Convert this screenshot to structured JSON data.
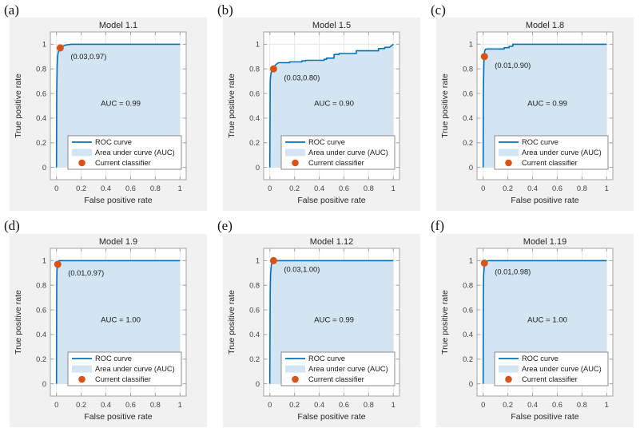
{
  "figure": {
    "background": "#ffffff",
    "panel_background": "#F1F1F1"
  },
  "colors": {
    "roc_line": "#0072BD",
    "auc_fill": "#D3E4F3",
    "classifier_dot": "#D95319",
    "grid": "#E6E6E6",
    "axis_box": "#A3A3A3",
    "tick_text": "#404040",
    "title_text": "#262626",
    "legend_border": "#7F7F7F",
    "legend_background": "#FFFFFF"
  },
  "chart_data": {
    "type": "line",
    "subtype": "roc-curves",
    "grid_layout": {
      "rows": 2,
      "cols": 3
    },
    "shared": {
      "xlabel": "False positive rate",
      "ylabel": "True positive rate",
      "tick_values": [
        0,
        0.2,
        0.4,
        0.6,
        0.8,
        1
      ],
      "tick_labels": [
        "0",
        "0.2",
        "0.4",
        "0.6",
        "0.8",
        "1"
      ],
      "xlim": [
        -0.05,
        1.05
      ],
      "ylim": [
        -0.1,
        1.1
      ],
      "grid_on": true,
      "legend": {
        "position": "lower-right-inside",
        "items": [
          {
            "swatch": "line",
            "label": "ROC curve"
          },
          {
            "swatch": "patch",
            "label": "Area under curve (AUC)"
          },
          {
            "swatch": "dot",
            "label": "Current classifier"
          }
        ]
      }
    },
    "panels": [
      {
        "panel_label": "(a)",
        "title": "Model 1.1",
        "auc": 0.99,
        "auc_text": "AUC = 0.99",
        "classifier": {
          "x": 0.03,
          "y": 0.97,
          "annotation": "(0.03,0.97)"
        },
        "roc": [
          [
            0,
            0
          ],
          [
            0.002,
            0.6
          ],
          [
            0.005,
            0.82
          ],
          [
            0.008,
            0.9
          ],
          [
            0.015,
            0.94
          ],
          [
            0.03,
            0.97
          ],
          [
            0.05,
            0.985
          ],
          [
            0.08,
            0.995
          ],
          [
            0.12,
            1
          ],
          [
            1,
            1
          ]
        ]
      },
      {
        "panel_label": "(b)",
        "title": "Model 1.5",
        "auc": 0.9,
        "auc_text": "AUC = 0.90",
        "classifier": {
          "x": 0.03,
          "y": 0.8,
          "annotation": "(0.03,0.80)"
        },
        "roc": [
          [
            0,
            0
          ],
          [
            0.003,
            0.7
          ],
          [
            0.006,
            0.74
          ],
          [
            0.01,
            0.77
          ],
          [
            0.015,
            0.78
          ],
          [
            0.03,
            0.8
          ],
          [
            0.04,
            0.825
          ],
          [
            0.055,
            0.84
          ],
          [
            0.07,
            0.85
          ],
          [
            0.16,
            0.85
          ],
          [
            0.16,
            0.857
          ],
          [
            0.26,
            0.857
          ],
          [
            0.26,
            0.865
          ],
          [
            0.29,
            0.865
          ],
          [
            0.29,
            0.87
          ],
          [
            0.44,
            0.87
          ],
          [
            0.44,
            0.878
          ],
          [
            0.46,
            0.878
          ],
          [
            0.46,
            0.887
          ],
          [
            0.52,
            0.887
          ],
          [
            0.52,
            0.917
          ],
          [
            0.56,
            0.917
          ],
          [
            0.56,
            0.925
          ],
          [
            0.7,
            0.925
          ],
          [
            0.7,
            0.947
          ],
          [
            0.88,
            0.947
          ],
          [
            0.88,
            0.965
          ],
          [
            0.93,
            0.965
          ],
          [
            0.93,
            0.975
          ],
          [
            0.97,
            0.975
          ],
          [
            1,
            1
          ]
        ]
      },
      {
        "panel_label": "(c)",
        "title": "Model 1.8",
        "auc": 0.99,
        "auc_text": "AUC = 0.99",
        "classifier": {
          "x": 0.01,
          "y": 0.9,
          "annotation": "(0.01,0.90)"
        },
        "roc": [
          [
            0,
            0
          ],
          [
            0.002,
            0.6
          ],
          [
            0.005,
            0.82
          ],
          [
            0.008,
            0.9
          ],
          [
            0.012,
            0.945
          ],
          [
            0.018,
            0.958
          ],
          [
            0.03,
            0.962
          ],
          [
            0.17,
            0.962
          ],
          [
            0.17,
            0.972
          ],
          [
            0.21,
            0.972
          ],
          [
            0.21,
            0.983
          ],
          [
            0.24,
            0.983
          ],
          [
            0.24,
            1
          ],
          [
            1,
            1
          ]
        ]
      },
      {
        "panel_label": "(d)",
        "title": "Model 1.9",
        "auc": 1.0,
        "auc_text": "AUC = 1.00",
        "classifier": {
          "x": 0.01,
          "y": 0.97,
          "annotation": "(0.01,0.97)"
        },
        "roc": [
          [
            0,
            0
          ],
          [
            0.002,
            0.8
          ],
          [
            0.004,
            0.92
          ],
          [
            0.008,
            0.96
          ],
          [
            0.012,
            0.985
          ],
          [
            0.018,
            1
          ],
          [
            1,
            1
          ]
        ]
      },
      {
        "panel_label": "(e)",
        "title": "Model 1.12",
        "auc": 0.99,
        "auc_text": "AUC = 0.99",
        "classifier": {
          "x": 0.03,
          "y": 1.0,
          "annotation": "(0.03,1.00)"
        },
        "roc": [
          [
            0,
            0
          ],
          [
            0.003,
            0.75
          ],
          [
            0.006,
            0.9
          ],
          [
            0.012,
            0.965
          ],
          [
            0.02,
            0.99
          ],
          [
            0.03,
            1
          ],
          [
            1,
            1
          ]
        ]
      },
      {
        "panel_label": "(f)",
        "title": "Model 1.19",
        "auc": 1.0,
        "auc_text": "AUC = 1.00",
        "classifier": {
          "x": 0.01,
          "y": 0.98,
          "annotation": "(0.01,0.98)"
        },
        "roc": [
          [
            0,
            0
          ],
          [
            0.002,
            0.7
          ],
          [
            0.004,
            0.88
          ],
          [
            0.006,
            0.915
          ],
          [
            0.01,
            0.975
          ],
          [
            0.015,
            0.985
          ],
          [
            0.02,
            0.99
          ],
          [
            0.04,
            1
          ],
          [
            1,
            1
          ]
        ]
      }
    ]
  }
}
